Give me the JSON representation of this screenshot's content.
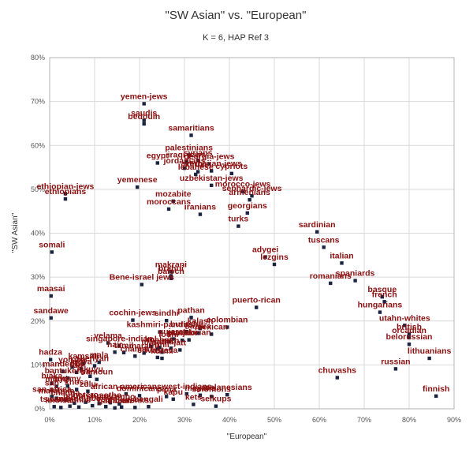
{
  "chart_data": {
    "type": "scatter",
    "title": "\"SW Asian\" vs. \"European\"",
    "subtitle": "K = 6, HAP Ref 3",
    "xlabel": "\"European\"",
    "ylabel": "\"SW Asian\"",
    "xlim": [
      0,
      90
    ],
    "ylim": [
      0,
      80
    ],
    "x_ticks": [
      "0%",
      "10%",
      "20%",
      "30%",
      "40%",
      "50%",
      "60%",
      "70%",
      "80%",
      "90%"
    ],
    "y_ticks": [
      "0%",
      "10%",
      "20%",
      "30%",
      "40%",
      "50%",
      "60%",
      "70%",
      "80%"
    ],
    "grid": true,
    "legend": "none",
    "marker_color": "#1a2440",
    "label_color": "#8b1010",
    "points": [
      {
        "label": "yemen-jews",
        "x": 21.0,
        "y": 69.5
      },
      {
        "label": "saudis",
        "x": 21.0,
        "y": 65.7
      },
      {
        "label": "bedouin",
        "x": 21.0,
        "y": 64.9
      },
      {
        "label": "samaritians",
        "x": 31.5,
        "y": 62.3
      },
      {
        "label": "palestinians",
        "x": 31.0,
        "y": 57.8
      },
      {
        "label": "egypt",
        "x": 24.0,
        "y": 56.0
      },
      {
        "label": "iraqi-jews",
        "x": 30.5,
        "y": 56.2
      },
      {
        "label": "syrians",
        "x": 33.0,
        "y": 56.6
      },
      {
        "label": "georgia-jews",
        "x": 35.5,
        "y": 55.8
      },
      {
        "label": "jordanians",
        "x": 30.0,
        "y": 54.8
      },
      {
        "label": "azerbaijan-jews",
        "x": 36.0,
        "y": 54.2
      },
      {
        "label": "druze",
        "x": 33.0,
        "y": 54.0
      },
      {
        "label": "lebanese",
        "x": 32.5,
        "y": 53.4
      },
      {
        "label": "cypriots",
        "x": 40.5,
        "y": 53.6
      },
      {
        "label": "uzbekistan-jews",
        "x": 36.0,
        "y": 50.9
      },
      {
        "label": "yemenese",
        "x": 19.5,
        "y": 50.5
      },
      {
        "label": "ethiopian-jews",
        "x": 3.5,
        "y": 49.0
      },
      {
        "label": "ethiopians",
        "x": 3.5,
        "y": 47.8
      },
      {
        "label": "morocco-jews",
        "x": 43.0,
        "y": 49.5
      },
      {
        "label": "sephardic-jews",
        "x": 45.0,
        "y": 48.5
      },
      {
        "label": "mozabite",
        "x": 27.5,
        "y": 47.3
      },
      {
        "label": "armenians",
        "x": 44.5,
        "y": 47.6
      },
      {
        "label": "moroccans",
        "x": 26.5,
        "y": 45.5
      },
      {
        "label": "iranians",
        "x": 33.5,
        "y": 44.3
      },
      {
        "label": "georgians",
        "x": 44.0,
        "y": 44.6
      },
      {
        "label": "turks",
        "x": 42.0,
        "y": 41.6
      },
      {
        "label": "sardinian",
        "x": 59.5,
        "y": 40.3
      },
      {
        "label": "somali",
        "x": 0.5,
        "y": 35.7
      },
      {
        "label": "tuscans",
        "x": 61.0,
        "y": 36.8
      },
      {
        "label": "adygei",
        "x": 48.0,
        "y": 34.6
      },
      {
        "label": "lezgins",
        "x": 50.0,
        "y": 32.9
      },
      {
        "label": "italian",
        "x": 65.0,
        "y": 33.2
      },
      {
        "label": "makrani",
        "x": 27.0,
        "y": 31.2
      },
      {
        "label": "brahui",
        "x": 27.0,
        "y": 30.3
      },
      {
        "label": "baloch",
        "x": 27.0,
        "y": 29.7
      },
      {
        "label": "spaniards",
        "x": 68.0,
        "y": 29.2
      },
      {
        "label": "Bene-israel jews",
        "x": 20.5,
        "y": 28.3
      },
      {
        "label": "romanians",
        "x": 62.5,
        "y": 28.6
      },
      {
        "label": "maasai",
        "x": 0.3,
        "y": 25.7
      },
      {
        "label": "basque",
        "x": 74.0,
        "y": 25.5
      },
      {
        "label": "french",
        "x": 74.5,
        "y": 24.4
      },
      {
        "label": "puerto-rican",
        "x": 46.0,
        "y": 23.1
      },
      {
        "label": "hungarians",
        "x": 73.5,
        "y": 22.0
      },
      {
        "label": "pathan",
        "x": 31.5,
        "y": 20.8
      },
      {
        "label": "cochin-jews",
        "x": 18.5,
        "y": 20.2
      },
      {
        "label": "sandawe",
        "x": 0.3,
        "y": 20.7
      },
      {
        "label": "sindhi",
        "x": 26.0,
        "y": 20.1
      },
      {
        "label": "colombian",
        "x": 39.5,
        "y": 18.6
      },
      {
        "label": "utahn-whites",
        "x": 79.0,
        "y": 19.0
      },
      {
        "label": "british",
        "x": 80.0,
        "y": 17.0
      },
      {
        "label": "orcadian",
        "x": 80.0,
        "y": 16.2
      },
      {
        "label": "kalash",
        "x": 33.5,
        "y": 18.3
      },
      {
        "label": "kashmiri-pandits",
        "x": 24.5,
        "y": 17.5
      },
      {
        "label": "burusho",
        "x": 30.5,
        "y": 17.6
      },
      {
        "label": "hazara",
        "x": 33.0,
        "y": 17.2
      },
      {
        "label": "mexican",
        "x": 36.0,
        "y": 17.0
      },
      {
        "label": "ecuadorian",
        "x": 31.0,
        "y": 15.7
      },
      {
        "label": "gujarati",
        "x": 27.5,
        "y": 15.9
      },
      {
        "label": "punjabi",
        "x": 29.5,
        "y": 15.6
      },
      {
        "label": "lodhi",
        "x": 26.5,
        "y": 15.3
      },
      {
        "label": "velama",
        "x": 13.0,
        "y": 15.0
      },
      {
        "label": "singapore-indian",
        "x": 15.5,
        "y": 14.3
      },
      {
        "label": "mahar",
        "x": 24.5,
        "y": 14.0
      },
      {
        "label": "kol",
        "x": 22.5,
        "y": 14.2
      },
      {
        "label": "belorussian",
        "x": 80.0,
        "y": 14.7
      },
      {
        "label": "maratha",
        "x": 24.0,
        "y": 13.6
      },
      {
        "label": "sikh",
        "x": 27.0,
        "y": 13.8
      },
      {
        "label": "jatt",
        "x": 29.0,
        "y": 13.4
      },
      {
        "label": "nair",
        "x": 14.5,
        "y": 12.9
      },
      {
        "label": "tamil",
        "x": 16.5,
        "y": 12.8
      },
      {
        "label": "marathi",
        "x": 21.0,
        "y": 12.7
      },
      {
        "label": "bhil",
        "x": 25.0,
        "y": 12.9
      },
      {
        "label": "lithuanians",
        "x": 84.5,
        "y": 11.5
      },
      {
        "label": "hadza",
        "x": 0.2,
        "y": 11.2
      },
      {
        "label": "srivastava",
        "x": 24.0,
        "y": 11.7
      },
      {
        "label": "chamar",
        "x": 19.0,
        "y": 12.0
      },
      {
        "label": "kurmi",
        "x": 25.0,
        "y": 11.5
      },
      {
        "label": "russian",
        "x": 77.0,
        "y": 9.1
      },
      {
        "label": "chuvashs",
        "x": 64.0,
        "y": 7.1
      },
      {
        "label": "kamsali",
        "x": 7.5,
        "y": 10.3
      },
      {
        "label": "mala",
        "x": 11.0,
        "y": 10.6
      },
      {
        "label": "yoruba",
        "x": 5.0,
        "y": 9.5
      },
      {
        "label": "luhya",
        "x": 7.0,
        "y": 9.1
      },
      {
        "label": "kenyan",
        "x": 10.0,
        "y": 9.8
      },
      {
        "label": "mandenka",
        "x": 3.0,
        "y": 8.5
      },
      {
        "label": "luo",
        "x": 6.0,
        "y": 8.3
      },
      {
        "label": "bantukenya",
        "x": 4.0,
        "y": 7.0
      },
      {
        "label": "kikuyu",
        "x": 9.0,
        "y": 7.4
      },
      {
        "label": "bamoun",
        "x": 10.5,
        "y": 6.7
      },
      {
        "label": "biaka",
        "x": 0.5,
        "y": 5.8
      },
      {
        "label": "mbuti",
        "x": 1.5,
        "y": 5.1
      },
      {
        "label": "pygmy",
        "x": 4.0,
        "y": 5.2
      },
      {
        "label": "san",
        "x": 0.5,
        "y": 4.2
      },
      {
        "label": "xhosa",
        "x": 6.0,
        "y": 4.4
      },
      {
        "label": "zulu",
        "x": 8.5,
        "y": 4.0
      },
      {
        "label": "finnish",
        "x": 86.0,
        "y": 2.9
      },
      {
        "label": "african-americans",
        "x": 17.0,
        "y": 3.4
      },
      {
        "label": "dominicans",
        "x": 20.0,
        "y": 3.0
      },
      {
        "label": "pima",
        "x": 26.0,
        "y": 2.8
      },
      {
        "label": "west-indians",
        "x": 30.5,
        "y": 3.4
      },
      {
        "label": "kapu",
        "x": 27.5,
        "y": 2.2
      },
      {
        "label": "mayans",
        "x": 33.5,
        "y": 3.1
      },
      {
        "label": "solomons",
        "x": 36.0,
        "y": 2.8
      },
      {
        "label": "melanesians",
        "x": 39.5,
        "y": 3.2
      },
      {
        "label": "kets",
        "x": 32.0,
        "y": 1.0
      },
      {
        "label": "selkups",
        "x": 37.0,
        "y": 0.6
      },
      {
        "label": "san-africa",
        "x": 0.5,
        "y": 2.8
      },
      {
        "label": "matabele",
        "x": 1.5,
        "y": 2.4
      },
      {
        "label": "chagga",
        "x": 3.5,
        "y": 2.0
      },
      {
        "label": "nguni",
        "x": 5.5,
        "y": 1.3
      },
      {
        "label": "herero",
        "x": 8.0,
        "y": 1.5
      },
      {
        "label": "shona",
        "x": 11.0,
        "y": 1.2
      },
      {
        "label": "sotho",
        "x": 13.5,
        "y": 1.4
      },
      {
        "label": "ovambo",
        "x": 15.5,
        "y": 1.1
      },
      {
        "label": "tswana",
        "x": 1.0,
        "y": 0.5
      },
      {
        "label": "khoisan",
        "x": 2.5,
        "y": 0.3
      },
      {
        "label": "mende",
        "x": 4.5,
        "y": 0.6
      },
      {
        "label": "temne",
        "x": 6.5,
        "y": 0.4
      },
      {
        "label": "igbo",
        "x": 9.5,
        "y": 0.7
      },
      {
        "label": "esan",
        "x": 12.5,
        "y": 0.5
      },
      {
        "label": "gambian",
        "x": 14.5,
        "y": 0.2
      },
      {
        "label": "yakuts",
        "x": 16.0,
        "y": 0.4
      },
      {
        "label": "evenks",
        "x": 19.0,
        "y": 0.3
      },
      {
        "label": "bengali",
        "x": 22.0,
        "y": 0.5
      }
    ]
  }
}
